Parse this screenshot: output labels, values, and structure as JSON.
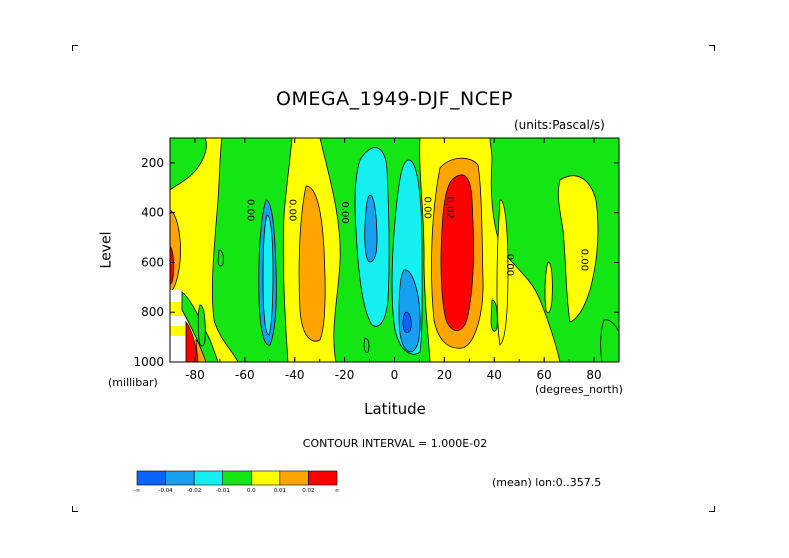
{
  "chart_data": {
    "type": "heatmap",
    "title": "OMEGA_1949-DJF_NCEP",
    "units_label": "(units:Pascal/s)",
    "xlabel": "Latitude",
    "x_units": "(degrees_north)",
    "ylabel": "Level",
    "y_units": "(millibar)",
    "xlim": [
      -90,
      90
    ],
    "ylim": [
      1000,
      100
    ],
    "x_ticks": [
      -80,
      -60,
      -40,
      -20,
      0,
      20,
      40,
      60,
      80
    ],
    "x_tick_labels": [
      "-80",
      "-60",
      "-40",
      "-20",
      "0",
      "20",
      "40",
      "60",
      "80"
    ],
    "y_ticks": [
      200,
      400,
      600,
      800,
      1000
    ],
    "y_tick_labels": [
      "200",
      "400",
      "600",
      "800",
      "1000"
    ],
    "contour_interval_text": "CONTOUR INTERVAL = 1.000E-02",
    "mean_text": "(mean) lon:0..357.5",
    "colorbar": {
      "colors": [
        "#0a64ff",
        "#18a0f0",
        "#14f0f0",
        "#14e614",
        "#ffff00",
        "#ffa500",
        "#ff0000"
      ],
      "labels": [
        "-∞",
        "-0.04",
        "-0.02",
        "-0.01",
        "0.0",
        "0.01",
        "0.02",
        "∞"
      ]
    },
    "contour_labels": [
      {
        "text": "0.00",
        "lat": -59,
        "lev": 390
      },
      {
        "text": "0.00",
        "lat": -42,
        "lev": 390
      },
      {
        "text": "0.00",
        "lat": -21,
        "lev": 400
      },
      {
        "text": "0.00",
        "lat": 12,
        "lev": 380
      },
      {
        "text": "0.02",
        "lat": 21,
        "lev": 380
      },
      {
        "text": "0.00",
        "lat": 45,
        "lev": 610
      },
      {
        "text": "0.00",
        "lat": 75,
        "lev": 590
      }
    ],
    "regions": [
      {
        "name": "green-band-west",
        "color": "#14e614",
        "lat_range": [
          -70,
          -52
        ],
        "lev_range": [
          150,
          960
        ]
      },
      {
        "name": "blue-cell-west",
        "color": "#18a0f0",
        "lat_range": [
          -62,
          -56
        ],
        "lev_range": [
          380,
          930
        ]
      },
      {
        "name": "orange-cell-minus35",
        "color": "#ffa500",
        "lat_range": [
          -41,
          -31
        ],
        "lev_range": [
          290,
          930
        ]
      },
      {
        "name": "cyan-cell-minus10",
        "color": "#14f0f0",
        "lat_range": [
          -18,
          -2
        ],
        "lev_range": [
          160,
          850
        ]
      },
      {
        "name": "cyan-cell-plus7",
        "color": "#14f0f0",
        "lat_range": [
          -1,
          14
        ],
        "lev_range": [
          180,
          990
        ]
      },
      {
        "name": "blue-core-plus7",
        "color": "#18a0f0",
        "lat_range": [
          3,
          13
        ],
        "lev_range": [
          650,
          960
        ]
      },
      {
        "name": "orange-cell-plus23",
        "color": "#ffa500",
        "lat_range": [
          14,
          32
        ],
        "lev_range": [
          160,
          960
        ]
      },
      {
        "name": "red-core-plus23",
        "color": "#ff0000",
        "lat_range": [
          17,
          31
        ],
        "lev_range": [
          230,
          880
        ]
      },
      {
        "name": "green-band-east",
        "color": "#14e614",
        "lat_range": [
          36,
          90
        ],
        "lev_range": [
          100,
          1000
        ]
      }
    ]
  }
}
